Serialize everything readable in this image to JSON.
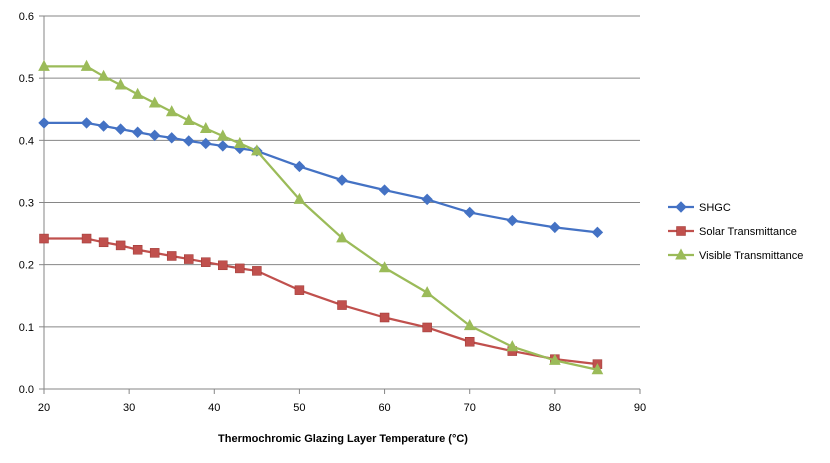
{
  "chart_data": {
    "type": "line",
    "title": "",
    "xlabel": "Thermochromic Glazing Layer Temperature (°C)",
    "ylabel": "",
    "xlim": [
      20,
      90
    ],
    "ylim": [
      0,
      0.6
    ],
    "xticks": [
      20,
      30,
      40,
      50,
      60,
      70,
      80,
      90
    ],
    "yticks": [
      0,
      0.1,
      0.2,
      0.3,
      0.4,
      0.5,
      0.6
    ],
    "xtick_labels": [
      "20",
      "30",
      "40",
      "50",
      "60",
      "70",
      "80",
      "90"
    ],
    "ytick_labels": [
      "0.0",
      "0.1",
      "0.2",
      "0.3",
      "0.4",
      "0.5",
      "0.6"
    ],
    "grid": "horizontal",
    "legend_position": "right",
    "series": [
      {
        "name": "SHGC",
        "color": "#4472C4",
        "marker": "diamond",
        "x": [
          20,
          25,
          27,
          29,
          31,
          33,
          35,
          37,
          39,
          41,
          43,
          45,
          50,
          55,
          60,
          65,
          70,
          75,
          80,
          85
        ],
        "y": [
          0.428,
          0.428,
          0.423,
          0.418,
          0.413,
          0.408,
          0.404,
          0.399,
          0.395,
          0.391,
          0.387,
          0.383,
          0.358,
          0.336,
          0.32,
          0.305,
          0.284,
          0.271,
          0.26,
          0.252
        ]
      },
      {
        "name": "Solar Transmittance",
        "color": "#C0504D",
        "marker": "square",
        "x": [
          20,
          25,
          27,
          29,
          31,
          33,
          35,
          37,
          39,
          41,
          43,
          45,
          50,
          55,
          60,
          65,
          70,
          75,
          80,
          85
        ],
        "y": [
          0.242,
          0.242,
          0.236,
          0.231,
          0.224,
          0.219,
          0.214,
          0.209,
          0.204,
          0.199,
          0.194,
          0.19,
          0.159,
          0.135,
          0.115,
          0.099,
          0.076,
          0.061,
          0.048,
          0.04
        ]
      },
      {
        "name": "Visible Transmittance",
        "color": "#9BBB59",
        "marker": "triangle",
        "x": [
          20,
          25,
          27,
          29,
          31,
          33,
          35,
          37,
          39,
          41,
          43,
          45,
          50,
          55,
          60,
          65,
          70,
          75,
          80,
          85
        ],
        "y": [
          0.519,
          0.519,
          0.503,
          0.489,
          0.474,
          0.46,
          0.446,
          0.432,
          0.419,
          0.407,
          0.395,
          0.383,
          0.305,
          0.243,
          0.195,
          0.155,
          0.102,
          0.068,
          0.046,
          0.031
        ]
      }
    ]
  }
}
